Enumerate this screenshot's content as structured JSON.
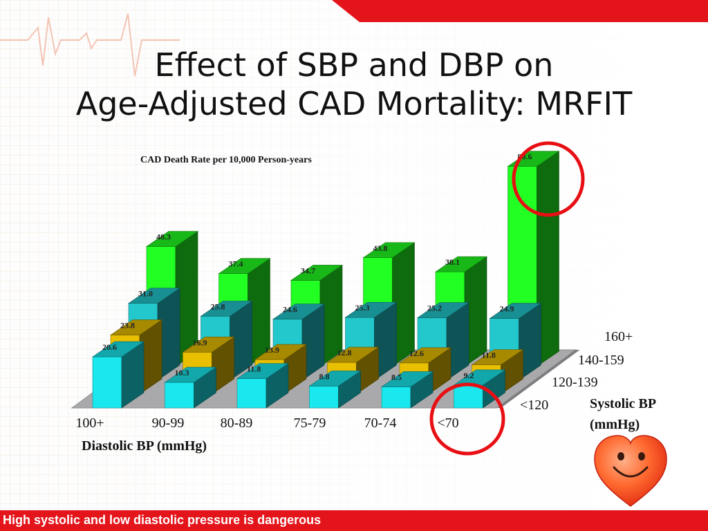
{
  "slide": {
    "title_line1": "Effect of SBP and DBP on",
    "title_line2": "Age-Adjusted CAD Mortality: MRFIT",
    "footer_text": "High systolic and low diastolic pressure is dangerous"
  },
  "chart_data": {
    "type": "bar",
    "subtype": "3d-grouped-bar",
    "title": "CAD Death Rate per 10,000 Person-years",
    "xlabel": "Diastolic BP (mmHg)",
    "zlabel": "Systolic BP (mmHg)",
    "categories": [
      "100+",
      "90-99",
      "80-89",
      "75-79",
      "70-74",
      "<70"
    ],
    "series": [
      {
        "name": "<120",
        "color": "#19e8ee",
        "values": [
          20.6,
          10.3,
          11.8,
          8.8,
          8.5,
          9.2
        ]
      },
      {
        "name": "120-139",
        "color": "#e8c000",
        "values": [
          23.8,
          16.9,
          13.9,
          12.8,
          12.6,
          11.8
        ]
      },
      {
        "name": "140-159",
        "color": "#22c8cc",
        "values": [
          31.0,
          25.8,
          24.6,
          25.3,
          25.2,
          24.9
        ]
      },
      {
        "name": "160+",
        "color": "#22ff22",
        "values": [
          48.3,
          37.4,
          34.7,
          43.8,
          38.1,
          80.6
        ]
      }
    ],
    "highlights": [
      "160+ / <70",
      "<120 / <70"
    ],
    "grid": false
  }
}
